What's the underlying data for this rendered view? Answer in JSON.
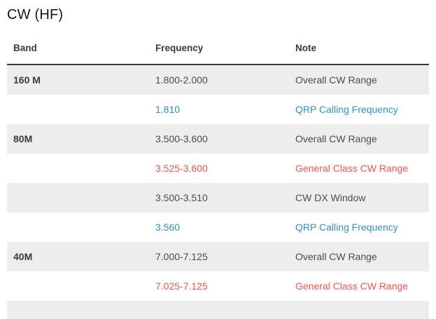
{
  "page": {
    "title": "CW (HF)"
  },
  "table": {
    "headers": [
      "Band",
      "Frequency",
      "Note"
    ],
    "rows": [
      {
        "band": "160 M",
        "frequency": "1.800-2.000",
        "note": "Overall CW Range",
        "color": "default"
      },
      {
        "band": "",
        "frequency": "1.810",
        "note": "QRP Calling Frequency",
        "color": "blue"
      },
      {
        "band": "80M",
        "frequency": "3.500-3.600",
        "note": "Overall CW Range",
        "color": "default"
      },
      {
        "band": "",
        "frequency": "3.525-3.600",
        "note": "General Class CW Range",
        "color": "red"
      },
      {
        "band": "",
        "frequency": "3.500-3.510",
        "note": "CW DX Window",
        "color": "default"
      },
      {
        "band": "",
        "frequency": "3.560",
        "note": "QRP Calling Frequency",
        "color": "blue"
      },
      {
        "band": "40M",
        "frequency": "7.000-7.125",
        "note": "Overall CW Range",
        "color": "default"
      },
      {
        "band": "",
        "frequency": "7.025-7.125",
        "note": "General Class CW Range",
        "color": "red"
      },
      {
        "band": "",
        "frequency": "",
        "note": "",
        "color": "default"
      }
    ]
  },
  "colors": {
    "accent_blue": "#2e8fc0",
    "accent_red": "#f0534f",
    "stripe_gray": "#ededed",
    "header_border": "#3a3a3a",
    "body_text": "#4d4d4d"
  }
}
